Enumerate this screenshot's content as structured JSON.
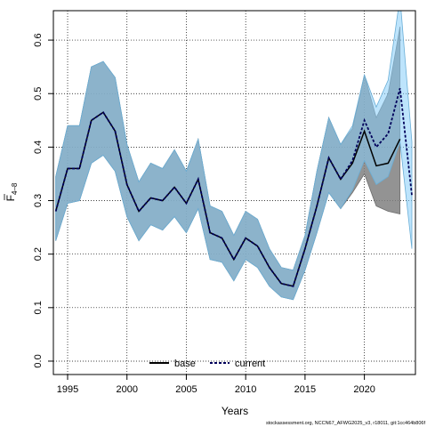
{
  "chart_data": {
    "type": "line",
    "xlabel": "Years",
    "ylabel_main": "F",
    "ylabel_sub": "4–8",
    "xlim": [
      1993.8,
      2024.3
    ],
    "ylim": [
      -0.025,
      0.655
    ],
    "x_ticks": [
      1995,
      2000,
      2005,
      2010,
      2015,
      2020
    ],
    "y_ticks": [
      0.0,
      0.1,
      0.2,
      0.3,
      0.4,
      0.5,
      0.6
    ],
    "y_tick_labels": [
      "0.0",
      "0.1",
      "0.2",
      "0.3",
      "0.4",
      "0.5",
      "0.6"
    ],
    "grid": true,
    "legend_position": "bottom-left",
    "footer": "stockassessment.org, NCCN67_AFWG2025_v3, r18011, git:1cc464b806f",
    "series": [
      {
        "name": "base",
        "color": "#000000",
        "band_color": "#808080",
        "x": [
          1994,
          1995,
          1996,
          1997,
          1998,
          1999,
          2000,
          2001,
          2002,
          2003,
          2004,
          2005,
          2006,
          2007,
          2008,
          2009,
          2010,
          2011,
          2012,
          2013,
          2014,
          2015,
          2016,
          2017,
          2018,
          2019,
          2020,
          2021,
          2022,
          2023
        ],
        "values": [
          0.28,
          0.36,
          0.36,
          0.45,
          0.465,
          0.43,
          0.33,
          0.28,
          0.305,
          0.3,
          0.325,
          0.295,
          0.34,
          0.24,
          0.23,
          0.19,
          0.23,
          0.215,
          0.175,
          0.145,
          0.14,
          0.21,
          0.29,
          0.38,
          0.34,
          0.37,
          0.43,
          0.365,
          0.37,
          0.415
        ],
        "lower": [
          0.225,
          0.295,
          0.3,
          0.37,
          0.385,
          0.355,
          0.27,
          0.225,
          0.255,
          0.245,
          0.27,
          0.24,
          0.285,
          0.19,
          0.185,
          0.15,
          0.19,
          0.175,
          0.14,
          0.12,
          0.115,
          0.17,
          0.24,
          0.315,
          0.285,
          0.315,
          0.35,
          0.29,
          0.28,
          0.275
        ],
        "upper": [
          0.345,
          0.44,
          0.44,
          0.55,
          0.56,
          0.53,
          0.405,
          0.335,
          0.37,
          0.36,
          0.395,
          0.355,
          0.415,
          0.29,
          0.28,
          0.235,
          0.28,
          0.265,
          0.21,
          0.175,
          0.17,
          0.235,
          0.355,
          0.455,
          0.405,
          0.435,
          0.535,
          0.455,
          0.5,
          0.625
        ]
      },
      {
        "name": "current",
        "color": "#00005a",
        "band_color": "#87cefa",
        "x": [
          1994,
          1995,
          1996,
          1997,
          1998,
          1999,
          2000,
          2001,
          2002,
          2003,
          2004,
          2005,
          2006,
          2007,
          2008,
          2009,
          2010,
          2011,
          2012,
          2013,
          2014,
          2015,
          2016,
          2017,
          2018,
          2019,
          2020,
          2021,
          2022,
          2023,
          2024
        ],
        "values": [
          0.28,
          0.36,
          0.36,
          0.45,
          0.465,
          0.43,
          0.33,
          0.28,
          0.305,
          0.3,
          0.325,
          0.295,
          0.34,
          0.24,
          0.23,
          0.19,
          0.23,
          0.215,
          0.175,
          0.145,
          0.14,
          0.21,
          0.29,
          0.38,
          0.34,
          0.375,
          0.45,
          0.4,
          0.425,
          0.51,
          0.31
        ],
        "lower": [
          0.225,
          0.295,
          0.3,
          0.37,
          0.385,
          0.355,
          0.27,
          0.225,
          0.255,
          0.245,
          0.27,
          0.24,
          0.285,
          0.19,
          0.185,
          0.15,
          0.19,
          0.175,
          0.14,
          0.12,
          0.115,
          0.17,
          0.24,
          0.315,
          0.285,
          0.32,
          0.375,
          0.33,
          0.345,
          0.41,
          0.21
        ],
        "upper": [
          0.345,
          0.44,
          0.44,
          0.55,
          0.56,
          0.53,
          0.405,
          0.335,
          0.37,
          0.36,
          0.395,
          0.355,
          0.415,
          0.29,
          0.28,
          0.235,
          0.28,
          0.265,
          0.21,
          0.175,
          0.17,
          0.235,
          0.355,
          0.455,
          0.405,
          0.44,
          0.535,
          0.475,
          0.525,
          0.68,
          0.41
        ]
      }
    ]
  }
}
